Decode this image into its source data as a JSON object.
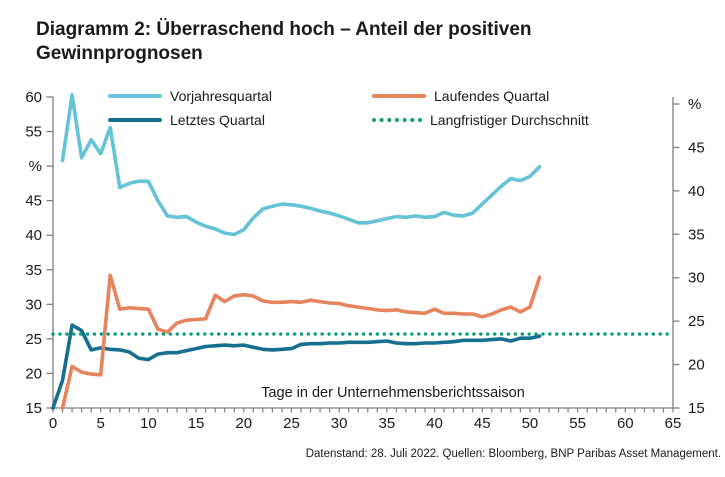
{
  "header": {
    "title_line1": "Diagramm 2: Überraschend hoch – Anteil der positiven",
    "title_line2": "Gewinnprognosen"
  },
  "legend": {
    "items": [
      {
        "label": "Vorjahresquartal",
        "color": "#64C3D7",
        "style": "solid"
      },
      {
        "label": "Laufendes Quartal",
        "color": "#E6845E",
        "style": "solid"
      },
      {
        "label": "Letztes Quartal",
        "color": "#176F8F",
        "style": "solid"
      },
      {
        "label": "Langfristiger Durchschnitt",
        "color": "#0D9C78",
        "style": "dotted"
      }
    ]
  },
  "footer": {
    "text": "Datenstand: 28. Juli 2022. Quellen: Bloomberg, BNP Paribas Asset Management."
  },
  "chart_data": {
    "type": "line",
    "title": "Diagramm 2: Überraschend hoch – Anteil der positiven Gewinnprognosen",
    "unit": "%",
    "x_axis": {
      "label": "Tage in der Unternehmensberichtssaison",
      "range": [
        0,
        65
      ],
      "major_ticks": [
        0,
        5,
        10,
        15,
        20,
        25,
        30,
        35,
        40,
        45,
        50,
        55,
        60,
        65
      ],
      "minor_tick_every": 1
    },
    "left_axis": {
      "unit": "%",
      "range": [
        15,
        60
      ],
      "tick_values": [
        15,
        20,
        25,
        30,
        35,
        40,
        45,
        50,
        55,
        60
      ],
      "tick_labels": [
        "15",
        "20",
        "25",
        "30",
        "35",
        "40",
        "45",
        "%",
        "55",
        "60"
      ]
    },
    "right_axis": {
      "unit": "%",
      "range": [
        15,
        50
      ],
      "tick_values": [
        15,
        20,
        25,
        30,
        35,
        40,
        45,
        50
      ],
      "tick_labels": [
        "15",
        "20",
        "25",
        "30",
        "35",
        "40",
        "45",
        "%"
      ]
    },
    "grid": false,
    "legend_position": "top",
    "series": [
      {
        "name": "Vorjahresquartal",
        "color": "#64C3D7",
        "style": "solid",
        "x_start": 1,
        "values": [
          50.8,
          60.3,
          51.2,
          53.8,
          51.8,
          55.6,
          46.9,
          47.5,
          47.8,
          47.8,
          45.0,
          42.8,
          42.6,
          42.7,
          41.9,
          41.3,
          40.9,
          40.3,
          40.1,
          40.8,
          42.5,
          43.8,
          44.2,
          44.5,
          44.4,
          44.2,
          43.9,
          43.5,
          43.2,
          42.8,
          42.3,
          41.8,
          41.8,
          42.1,
          42.4,
          42.7,
          42.6,
          42.8,
          42.6,
          42.7,
          43.3,
          42.9,
          42.8,
          43.2,
          44.5,
          45.8,
          47.1,
          48.2,
          47.9,
          48.5,
          49.9
        ]
      },
      {
        "name": "Letztes Quartal",
        "color": "#176F8F",
        "style": "solid",
        "x_start": 0,
        "values": [
          15.0,
          19.0,
          27.0,
          26.2,
          23.4,
          23.7,
          23.5,
          23.4,
          23.1,
          22.2,
          22.0,
          22.8,
          23.0,
          23.0,
          23.3,
          23.6,
          23.9,
          24.0,
          24.1,
          24.0,
          24.1,
          23.8,
          23.5,
          23.4,
          23.5,
          23.6,
          24.2,
          24.3,
          24.3,
          24.4,
          24.4,
          24.5,
          24.5,
          24.5,
          24.6,
          24.7,
          24.4,
          24.3,
          24.3,
          24.4,
          24.4,
          24.5,
          24.6,
          24.8,
          24.8,
          24.8,
          24.9,
          25.0,
          24.7,
          25.1,
          25.1,
          25.4
        ]
      },
      {
        "name": "Laufendes Quartal",
        "color": "#E6845E",
        "style": "solid",
        "x_start": 1,
        "values": [
          15.0,
          21.0,
          20.2,
          19.9,
          19.8,
          34.2,
          29.3,
          29.5,
          29.4,
          29.3,
          26.4,
          26.0,
          27.3,
          27.7,
          27.8,
          27.9,
          31.3,
          30.4,
          31.2,
          31.4,
          31.2,
          30.5,
          30.3,
          30.3,
          30.4,
          30.3,
          30.6,
          30.4,
          30.2,
          30.1,
          29.8,
          29.6,
          29.4,
          29.2,
          29.1,
          29.2,
          28.9,
          28.8,
          28.7,
          29.3,
          28.7,
          28.7,
          28.6,
          28.6,
          28.2,
          28.6,
          29.2,
          29.6,
          28.9,
          29.6,
          33.9
        ]
      },
      {
        "name": "Langfristiger Durchschnitt",
        "color": "#0D9C78",
        "style": "dotted",
        "constant_value": 25.7,
        "x_span": [
          0,
          65
        ]
      }
    ],
    "footer": "Datenstand: 28. Juli 2022. Quellen: Bloomberg, BNP Paribas Asset Management."
  }
}
